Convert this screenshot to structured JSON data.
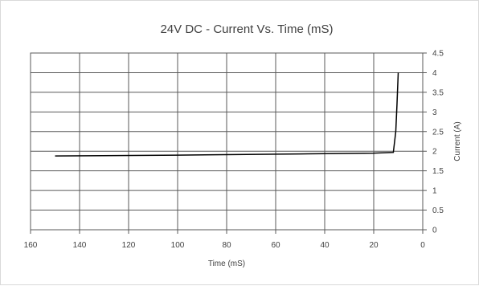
{
  "chart_data": {
    "type": "line",
    "title": "24V DC - Current Vs. Time (mS)",
    "xlabel": "Time (mS)",
    "ylabel": "Current (A)",
    "xlim": [
      160,
      0
    ],
    "ylim": [
      0,
      4.5
    ],
    "x_reversed": true,
    "x_ticks": [
      160,
      140,
      120,
      100,
      80,
      60,
      40,
      20,
      0
    ],
    "x_tick_labels": [
      "160",
      "140",
      "120",
      "100",
      "80",
      "60",
      "40",
      "20",
      "0"
    ],
    "y_ticks": [
      0,
      0.5,
      1,
      1.5,
      2,
      2.5,
      3,
      3.5,
      4,
      4.5
    ],
    "y_tick_labels": [
      "0",
      "0.5",
      "1",
      "1.5",
      "2",
      "2.5",
      "3",
      "3.5",
      "4",
      "4.5"
    ],
    "y_axis_side": "right",
    "grid": true,
    "series": [
      {
        "x": [
          150,
          100,
          50,
          20,
          12,
          11,
          10.5,
          10
        ],
        "y": [
          1.88,
          1.9,
          1.93,
          1.95,
          1.97,
          2.5,
          3.2,
          4.0
        ],
        "color": "#000000"
      }
    ]
  }
}
